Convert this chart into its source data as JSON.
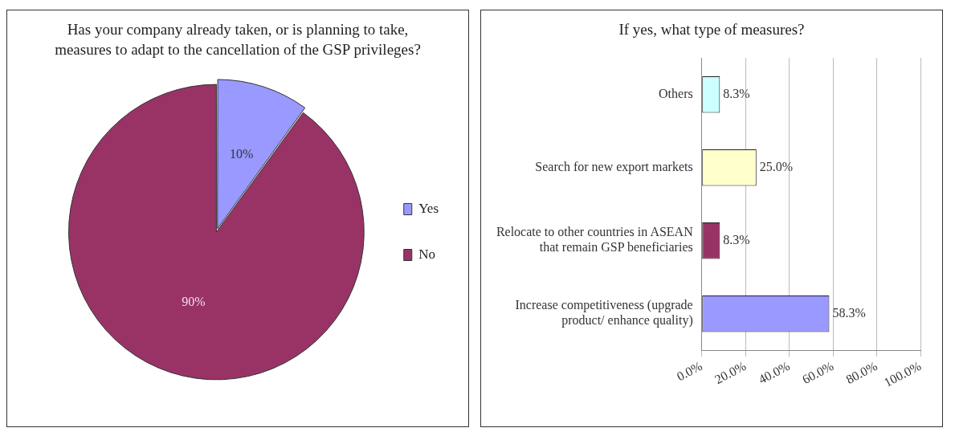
{
  "chart_data": [
    {
      "type": "pie",
      "title": "Has your company already taken, or is planning to take, measures to adapt to the cancellation of the GSP privileges?",
      "categories": [
        "Yes",
        "No"
      ],
      "values": [
        10,
        90
      ],
      "colors": [
        "#9999ff",
        "#993366"
      ],
      "value_labels": [
        "10%",
        "90%"
      ],
      "legend": "right"
    },
    {
      "type": "bar",
      "orientation": "horizontal",
      "title": "If yes, what type of measures?",
      "categories": [
        "Others",
        "Search for new export markets",
        "Relocate to other countries in ASEAN that remain GSP beneficiaries",
        "Increase competitiveness (upgrade product/ enhance quality)"
      ],
      "values": [
        8.3,
        25.0,
        8.3,
        58.3
      ],
      "colors": [
        "#ccffff",
        "#ffffcc",
        "#993366",
        "#9999ff"
      ],
      "value_labels": [
        "8.3%",
        "25.0%",
        "8.3%",
        "58.3%"
      ],
      "xlim": [
        0,
        100
      ],
      "xticks": [
        {
          "value": 0,
          "label": "0.0%"
        },
        {
          "value": 20,
          "label": "20.0%"
        },
        {
          "value": 40,
          "label": "40.0%"
        },
        {
          "value": 60,
          "label": "60.0%"
        },
        {
          "value": 80,
          "label": "80.0%"
        },
        {
          "value": 100,
          "label": "100.0%"
        }
      ],
      "grid": "x"
    }
  ]
}
